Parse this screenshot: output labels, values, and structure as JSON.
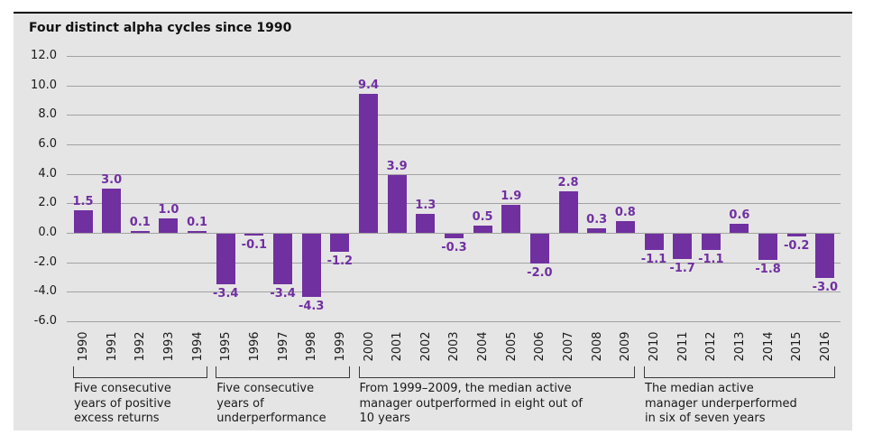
{
  "title": "Four distinct alpha cycles since 1990",
  "colors": {
    "panel_background": "#e6e5e6",
    "top_border": "#000000",
    "bar": "#7030a0",
    "value_label": "#7030a0",
    "gridline": "#a2a2a2",
    "axis_text": "#1a1a1a",
    "bracket": "#3a3a3a"
  },
  "chart_data": {
    "type": "bar",
    "title": "Four distinct alpha cycles since 1990",
    "categories": [
      "1990",
      "1991",
      "1992",
      "1993",
      "1994",
      "1995",
      "1996",
      "1997",
      "1998",
      "1999",
      "2000",
      "2001",
      "2002",
      "2003",
      "2004",
      "2005",
      "2006",
      "2007",
      "2008",
      "2009",
      "2010",
      "2011",
      "2012",
      "2013",
      "2014",
      "2015",
      "2016"
    ],
    "values": [
      1.5,
      3.0,
      0.1,
      1.0,
      0.1,
      -3.4,
      -0.1,
      -3.4,
      -4.3,
      -1.2,
      9.4,
      3.9,
      1.3,
      -0.3,
      0.5,
      1.9,
      -2.0,
      2.8,
      0.3,
      0.8,
      -1.1,
      -1.7,
      -1.1,
      0.6,
      -1.8,
      -0.2,
      -3.0
    ],
    "xlabel": "",
    "ylabel": "",
    "ylim": [
      -6.0,
      12.0
    ],
    "ytick_step": 2.0,
    "ytick_labels": [
      "12.0",
      "10.0",
      "8.0",
      "6.0",
      "4.0",
      "2.0",
      "0.0",
      "-2.0",
      "-4.0",
      "-6.0"
    ],
    "grid": true,
    "legend_position": "none",
    "value_labels_shown": true,
    "annotations": [
      {
        "start_year": "1990",
        "end_year": "1994",
        "lines": [
          "Five consecutive",
          "years of positive",
          "excess returns"
        ]
      },
      {
        "start_year": "1995",
        "end_year": "1999",
        "lines": [
          "Five consecutive",
          "years of",
          "underperformance"
        ]
      },
      {
        "start_year": "2000",
        "end_year": "2009",
        "lines": [
          "From 1999–2009, the median active",
          "manager outperformed in eight out of",
          "10 years"
        ]
      },
      {
        "start_year": "2010",
        "end_year": "2016",
        "lines": [
          "The median active",
          "manager underperformed",
          "in six of seven years"
        ]
      }
    ]
  }
}
